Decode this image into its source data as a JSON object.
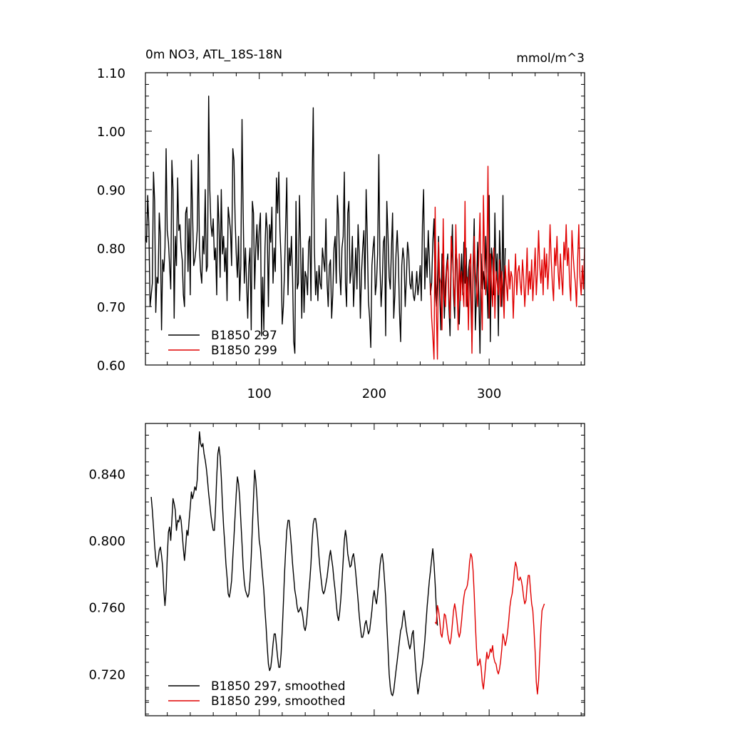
{
  "chart_data": [
    {
      "type": "line",
      "title": "0m NO3, ATL_18S-18N",
      "subtitle": "mmol/m^3",
      "xlim": [
        1,
        383
      ],
      "ylim": [
        0.6,
        1.1
      ],
      "xticks": [
        100,
        200,
        300
      ],
      "xtick_labels": [
        "100",
        "200",
        "300"
      ],
      "yticks": [
        0.6,
        0.7,
        0.8,
        0.9,
        1.0,
        1.1
      ],
      "ytick_labels": [
        "0.60",
        "0.70",
        "0.80",
        "0.90",
        "1.00",
        "1.10"
      ],
      "grid": false,
      "legend": "bottom-left",
      "series": [
        {
          "name": "B1850 297",
          "color": "#000000",
          "x_start": 1,
          "values": [
            0.82,
            0.81,
            0.89,
            0.84,
            0.7,
            0.72,
            0.74,
            0.93,
            0.88,
            0.69,
            0.75,
            0.74,
            0.86,
            0.82,
            0.66,
            0.78,
            0.76,
            0.8,
            0.97,
            0.83,
            0.81,
            0.77,
            0.73,
            0.95,
            0.9,
            0.68,
            0.82,
            0.77,
            0.92,
            0.83,
            0.84,
            0.8,
            0.78,
            0.72,
            0.7,
            0.86,
            0.87,
            0.76,
            0.85,
            0.72,
            0.95,
            0.86,
            0.77,
            0.78,
            0.8,
            0.83,
            0.96,
            0.8,
            0.76,
            0.74,
            0.82,
            0.79,
            0.9,
            0.76,
            0.77,
            1.06,
            0.9,
            0.84,
            0.82,
            0.85,
            0.78,
            0.8,
            0.72,
            0.89,
            0.84,
            0.75,
            0.9,
            0.79,
            0.82,
            0.76,
            0.8,
            0.71,
            0.87,
            0.85,
            0.83,
            0.77,
            0.97,
            0.95,
            0.85,
            0.79,
            0.75,
            0.82,
            0.71,
            0.77,
            1.02,
            0.86,
            0.74,
            0.8,
            0.74,
            0.68,
            0.77,
            0.8,
            0.66,
            0.88,
            0.86,
            0.73,
            0.8,
            0.84,
            0.78,
            0.83,
            0.86,
            0.65,
            0.75,
            0.66,
            0.8,
            0.86,
            0.83,
            0.7,
            0.84,
            0.81,
            0.87,
            0.74,
            0.8,
            0.76,
            0.92,
            0.86,
            0.93,
            0.83,
            0.78,
            0.67,
            0.7,
            0.76,
            0.84,
            0.92,
            0.72,
            0.8,
            0.77,
            0.82,
            0.75,
            0.64,
            0.62,
            0.88,
            0.73,
            0.74,
            0.89,
            0.8,
            0.68,
            0.8,
            0.69,
            0.76,
            0.75,
            0.72,
            0.81,
            0.82,
            0.71,
            0.91,
            1.04,
            0.8,
            0.72,
            0.76,
            0.71,
            0.77,
            0.74,
            0.73,
            0.8,
            0.78,
            0.76,
            0.85,
            0.74,
            0.7,
            0.77,
            0.78,
            0.68,
            0.72,
            0.8,
            0.82,
            0.74,
            0.89,
            0.85,
            0.76,
            0.72,
            0.8,
            0.82,
            0.93,
            0.74,
            0.7,
            0.86,
            0.88,
            0.74,
            0.76,
            0.82,
            0.7,
            0.75,
            0.8,
            0.73,
            0.84,
            0.79,
            0.68,
            0.76,
            0.8,
            0.83,
            0.73,
            0.9,
            0.82,
            0.71,
            0.68,
            0.63,
            0.77,
            0.8,
            0.82,
            0.72,
            0.74,
            0.79,
            0.96,
            0.77,
            0.7,
            0.74,
            0.81,
            0.82,
            0.65,
            0.88,
            0.82,
            0.75,
            0.73,
            0.8,
            0.86,
            0.68,
            0.72,
            0.79,
            0.83,
            0.78,
            0.69,
            0.64,
            0.77,
            0.8,
            0.78,
            0.7,
            0.75,
            0.81,
            0.79,
            0.74,
            0.73,
            0.76,
            0.72,
            0.71,
            0.73,
            0.76,
            0.72,
            0.74,
            0.77,
            0.71,
            0.84,
            0.9,
            0.73,
            0.8,
            0.75,
            0.83,
            0.78,
            0.72,
            0.74,
            0.81,
            0.85,
            0.73,
            0.7,
            0.74,
            0.82,
            0.72,
            0.66,
            0.79,
            0.76,
            0.68,
            0.74,
            0.77,
            0.79,
            0.7,
            0.65,
            0.77,
            0.84,
            0.72,
            0.68,
            0.79,
            0.78,
            0.71,
            0.67,
            0.74,
            0.79,
            0.72,
            0.81,
            0.74,
            0.8,
            0.7,
            0.76,
            0.78,
            0.71,
            0.64,
            0.77,
            0.85,
            0.66,
            0.72,
            0.81,
            0.72,
            0.62,
            0.79,
            0.73,
            0.76,
            0.73,
            0.82,
            0.74,
            0.68,
            0.89,
            0.64,
            0.8,
            0.78,
            0.72,
            0.86,
            0.75,
            0.79,
            0.65,
            0.83,
            0.77,
            0.7,
            0.89,
            0.7,
            0.8
          ]
        },
        {
          "name": "B1850 299",
          "color": "#e00000",
          "x_start": 249,
          "values": [
            0.74,
            0.68,
            0.65,
            0.61,
            0.87,
            0.7,
            0.61,
            0.81,
            0.75,
            0.74,
            0.66,
            0.85,
            0.72,
            0.7,
            0.76,
            0.78,
            0.72,
            0.68,
            0.82,
            0.79,
            0.74,
            0.7,
            0.84,
            0.76,
            0.66,
            0.79,
            0.71,
            0.76,
            0.73,
            0.7,
            0.88,
            0.7,
            0.75,
            0.66,
            0.77,
            0.79,
            0.62,
            0.74,
            0.82,
            0.76,
            0.73,
            0.7,
            0.79,
            0.86,
            0.73,
            0.66,
            0.89,
            0.78,
            0.72,
            0.76,
            0.94,
            0.68,
            0.79,
            0.74,
            0.7,
            0.8,
            0.68,
            0.76,
            0.74,
            0.72,
            0.78,
            0.7,
            0.76,
            0.73,
            0.68,
            0.77,
            0.74,
            0.71,
            0.78,
            0.73,
            0.76,
            0.75,
            0.68,
            0.74,
            0.79,
            0.72,
            0.76,
            0.77,
            0.74,
            0.72,
            0.78,
            0.75,
            0.7,
            0.74,
            0.8,
            0.72,
            0.76,
            0.73,
            0.78,
            0.71,
            0.75,
            0.8,
            0.72,
            0.76,
            0.83,
            0.77,
            0.74,
            0.78,
            0.72,
            0.8,
            0.75,
            0.79,
            0.73,
            0.77,
            0.84,
            0.78,
            0.74,
            0.71,
            0.8,
            0.77,
            0.82,
            0.76,
            0.73,
            0.79,
            0.75,
            0.72,
            0.81,
            0.78,
            0.84,
            0.77,
            0.8,
            0.74,
            0.71,
            0.83,
            0.79,
            0.76,
            0.74,
            0.7,
            0.78,
            0.84,
            0.75,
            0.72,
            0.77,
            0.73,
            0.8
          ]
        }
      ]
    },
    {
      "type": "line",
      "xlim": [
        1,
        383
      ],
      "ylim": [
        0.695,
        0.87
      ],
      "yticks": [
        0.72,
        0.76,
        0.8,
        0.84
      ],
      "ytick_labels": [
        "0.720",
        "0.760",
        "0.800",
        "0.840"
      ],
      "xticks": [
        100,
        200,
        300
      ],
      "grid": false,
      "legend": "bottom-left",
      "series": [
        {
          "name": "B1850 297, smoothed",
          "color": "#000000",
          "x_start": 6,
          "values": [
            0.826,
            0.818,
            0.808,
            0.797,
            0.789,
            0.784,
            0.788,
            0.794,
            0.796,
            0.791,
            0.784,
            0.77,
            0.761,
            0.77,
            0.79,
            0.805,
            0.808,
            0.8,
            0.812,
            0.825,
            0.822,
            0.818,
            0.806,
            0.812,
            0.811,
            0.815,
            0.812,
            0.804,
            0.795,
            0.788,
            0.796,
            0.806,
            0.803,
            0.812,
            0.82,
            0.829,
            0.825,
            0.828,
            0.832,
            0.83,
            0.836,
            0.852,
            0.865,
            0.858,
            0.856,
            0.858,
            0.852,
            0.848,
            0.843,
            0.836,
            0.828,
            0.822,
            0.815,
            0.81,
            0.806,
            0.806,
            0.82,
            0.838,
            0.852,
            0.856,
            0.85,
            0.838,
            0.822,
            0.808,
            0.798,
            0.786,
            0.778,
            0.768,
            0.766,
            0.77,
            0.776,
            0.79,
            0.802,
            0.815,
            0.828,
            0.838,
            0.834,
            0.826,
            0.812,
            0.798,
            0.784,
            0.775,
            0.77,
            0.768,
            0.766,
            0.768,
            0.776,
            0.79,
            0.808,
            0.825,
            0.842,
            0.836,
            0.826,
            0.812,
            0.8,
            0.795,
            0.786,
            0.778,
            0.77,
            0.758,
            0.748,
            0.736,
            0.726,
            0.722,
            0.724,
            0.73,
            0.738,
            0.744,
            0.744,
            0.737,
            0.73,
            0.724,
            0.724,
            0.732,
            0.746,
            0.762,
            0.78,
            0.794,
            0.806,
            0.812,
            0.812,
            0.805,
            0.796,
            0.786,
            0.778,
            0.77,
            0.766,
            0.76,
            0.757,
            0.758,
            0.76,
            0.758,
            0.754,
            0.748,
            0.746,
            0.75,
            0.758,
            0.768,
            0.776,
            0.786,
            0.8,
            0.81,
            0.813,
            0.813,
            0.808,
            0.8,
            0.79,
            0.782,
            0.776,
            0.77,
            0.768,
            0.77,
            0.774,
            0.778,
            0.784,
            0.79,
            0.794,
            0.789,
            0.784,
            0.776,
            0.77,
            0.762,
            0.755,
            0.752,
            0.757,
            0.765,
            0.776,
            0.788,
            0.8,
            0.806,
            0.801,
            0.792,
            0.788,
            0.784,
            0.785,
            0.79,
            0.792,
            0.787,
            0.78,
            0.772,
            0.764,
            0.755,
            0.748,
            0.742,
            0.742,
            0.745,
            0.75,
            0.752,
            0.748,
            0.744,
            0.746,
            0.752,
            0.758,
            0.766,
            0.77,
            0.765,
            0.762,
            0.768,
            0.776,
            0.785,
            0.79,
            0.792,
            0.786,
            0.776,
            0.766,
            0.75,
            0.735,
            0.72,
            0.712,
            0.708,
            0.707,
            0.71,
            0.716,
            0.722,
            0.728,
            0.734,
            0.74,
            0.746,
            0.748,
            0.754,
            0.758,
            0.752,
            0.746,
            0.742,
            0.738,
            0.735,
            0.738,
            0.744,
            0.746,
            0.735,
            0.724,
            0.715,
            0.708,
            0.712,
            0.718,
            0.722,
            0.726,
            0.732,
            0.74,
            0.75,
            0.76,
            0.768,
            0.776,
            0.782,
            0.789,
            0.795,
            0.786,
            0.774,
            0.76,
            0.749
          ]
        },
        {
          "name": "B1850 299, smoothed",
          "color": "#e00000",
          "x_start": 253,
          "values": [
            0.751,
            0.75,
            0.761,
            0.758,
            0.752,
            0.744,
            0.742,
            0.748,
            0.756,
            0.755,
            0.75,
            0.744,
            0.74,
            0.738,
            0.742,
            0.75,
            0.758,
            0.762,
            0.758,
            0.752,
            0.745,
            0.742,
            0.745,
            0.752,
            0.76,
            0.766,
            0.77,
            0.771,
            0.773,
            0.778,
            0.787,
            0.792,
            0.79,
            0.782,
            0.768,
            0.75,
            0.735,
            0.725,
            0.726,
            0.729,
            0.724,
            0.715,
            0.711,
            0.718,
            0.726,
            0.733,
            0.729,
            0.731,
            0.735,
            0.733,
            0.737,
            0.73,
            0.727,
            0.726,
            0.722,
            0.72,
            0.723,
            0.728,
            0.735,
            0.744,
            0.741,
            0.737,
            0.74,
            0.745,
            0.752,
            0.76,
            0.765,
            0.768,
            0.774,
            0.782,
            0.787,
            0.784,
            0.777,
            0.776,
            0.778,
            0.776,
            0.772,
            0.766,
            0.762,
            0.764,
            0.773,
            0.779,
            0.779,
            0.77,
            0.762,
            0.758,
            0.747,
            0.733,
            0.715,
            0.708,
            0.716,
            0.731,
            0.747,
            0.758,
            0.76,
            0.762
          ]
        }
      ]
    }
  ]
}
